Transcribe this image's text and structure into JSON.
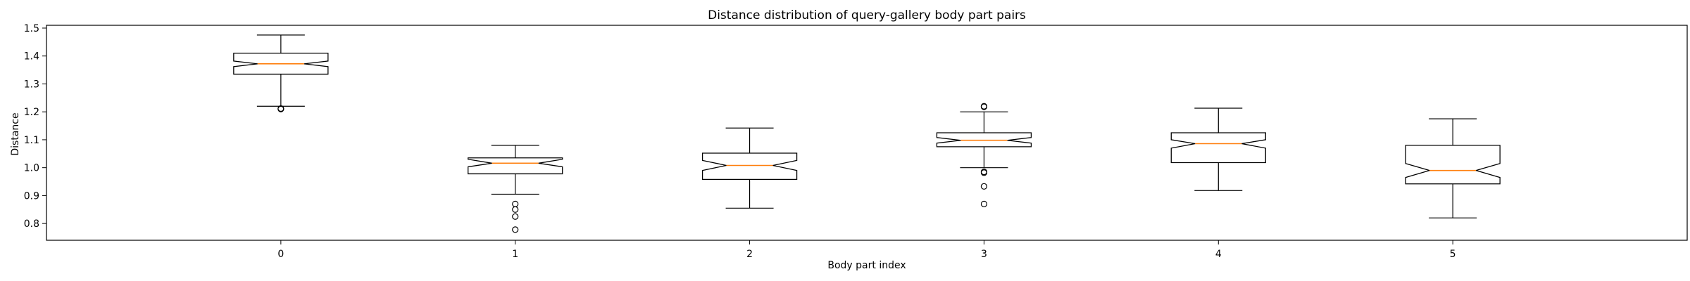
{
  "chart_data": {
    "type": "boxplot",
    "title": "Distance distribution of query-gallery body part pairs",
    "xlabel": "Body part index",
    "ylabel": "Distance",
    "categories": [
      "0",
      "1",
      "2",
      "3",
      "4",
      "5"
    ],
    "ylim": [
      0.74,
      1.51
    ],
    "yticks": [
      "0.8",
      "0.9",
      "1.0",
      "1.1",
      "1.2",
      "1.3",
      "1.4",
      "1.5"
    ],
    "notched": true,
    "grid": false,
    "colors": {
      "box": "#000000",
      "median": "#ff7f0e",
      "outlier": "#000000"
    },
    "boxes": [
      {
        "whisker_low": 1.22,
        "q1": 1.335,
        "median": 1.372,
        "q3": 1.41,
        "whisker_high": 1.475,
        "notch_low": 1.362,
        "notch_high": 1.382,
        "outliers": [
          1.21,
          1.212
        ]
      },
      {
        "whisker_low": 0.905,
        "q1": 0.978,
        "median": 1.016,
        "q3": 1.035,
        "whisker_high": 1.08,
        "notch_low": 1.003,
        "notch_high": 1.03,
        "outliers": [
          0.87,
          0.85,
          0.825,
          0.778
        ]
      },
      {
        "whisker_low": 0.855,
        "q1": 0.958,
        "median": 1.008,
        "q3": 1.052,
        "whisker_high": 1.142,
        "notch_low": 0.99,
        "notch_high": 1.026,
        "outliers": []
      },
      {
        "whisker_low": 1.0,
        "q1": 1.075,
        "median": 1.098,
        "q3": 1.125,
        "whisker_high": 1.2,
        "notch_low": 1.088,
        "notch_high": 1.108,
        "outliers": [
          1.218,
          1.22,
          0.985,
          0.982,
          0.933,
          0.87
        ]
      },
      {
        "whisker_low": 0.918,
        "q1": 1.018,
        "median": 1.086,
        "q3": 1.125,
        "whisker_high": 1.213,
        "notch_low": 1.07,
        "notch_high": 1.1,
        "outliers": []
      },
      {
        "whisker_low": 0.82,
        "q1": 0.942,
        "median": 0.99,
        "q3": 1.08,
        "whisker_high": 1.175,
        "notch_low": 0.965,
        "notch_high": 1.015,
        "outliers": []
      }
    ]
  }
}
